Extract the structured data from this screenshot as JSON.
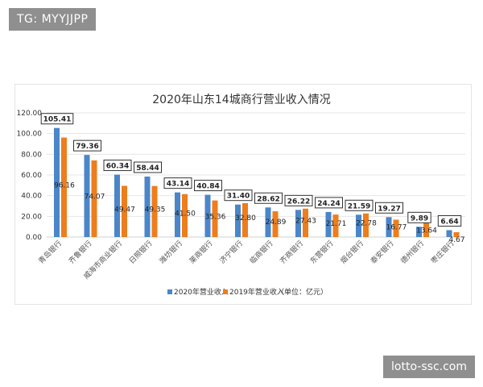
{
  "overlay": {
    "tag": "TG: MYYJJPP",
    "site": "lotto-ssc.com"
  },
  "chart_data": {
    "type": "bar",
    "title": "2020年山东14城商行营业收入情况",
    "categories": [
      "青岛银行",
      "齐鲁银行",
      "威海市商业银行",
      "日照银行",
      "潍坊银行",
      "莱商银行",
      "济宁银行",
      "临商银行",
      "齐商银行",
      "东营银行",
      "烟台银行",
      "泰安银行",
      "德州银行",
      "枣庄银行"
    ],
    "series": [
      {
        "name": "2020年营业收入",
        "color": "#4a86c8",
        "values": [
          105.41,
          79.36,
          60.34,
          58.44,
          43.14,
          40.84,
          31.4,
          28.62,
          26.22,
          24.24,
          21.59,
          19.27,
          9.89,
          6.64
        ]
      },
      {
        "name": "2019年营业收入",
        "color": "#ee7d1c",
        "values": [
          96.16,
          74.07,
          49.47,
          49.35,
          41.5,
          35.36,
          32.8,
          24.89,
          27.43,
          21.71,
          22.78,
          16.77,
          13.64,
          4.67
        ]
      }
    ],
    "unit_note": "（单位：亿元）",
    "ylim": [
      0,
      120
    ],
    "yticks": [
      "0.00",
      "20.00",
      "40.00",
      "60.00",
      "80.00",
      "100.00",
      "120.00"
    ],
    "grid": true,
    "legend": "bottom"
  }
}
